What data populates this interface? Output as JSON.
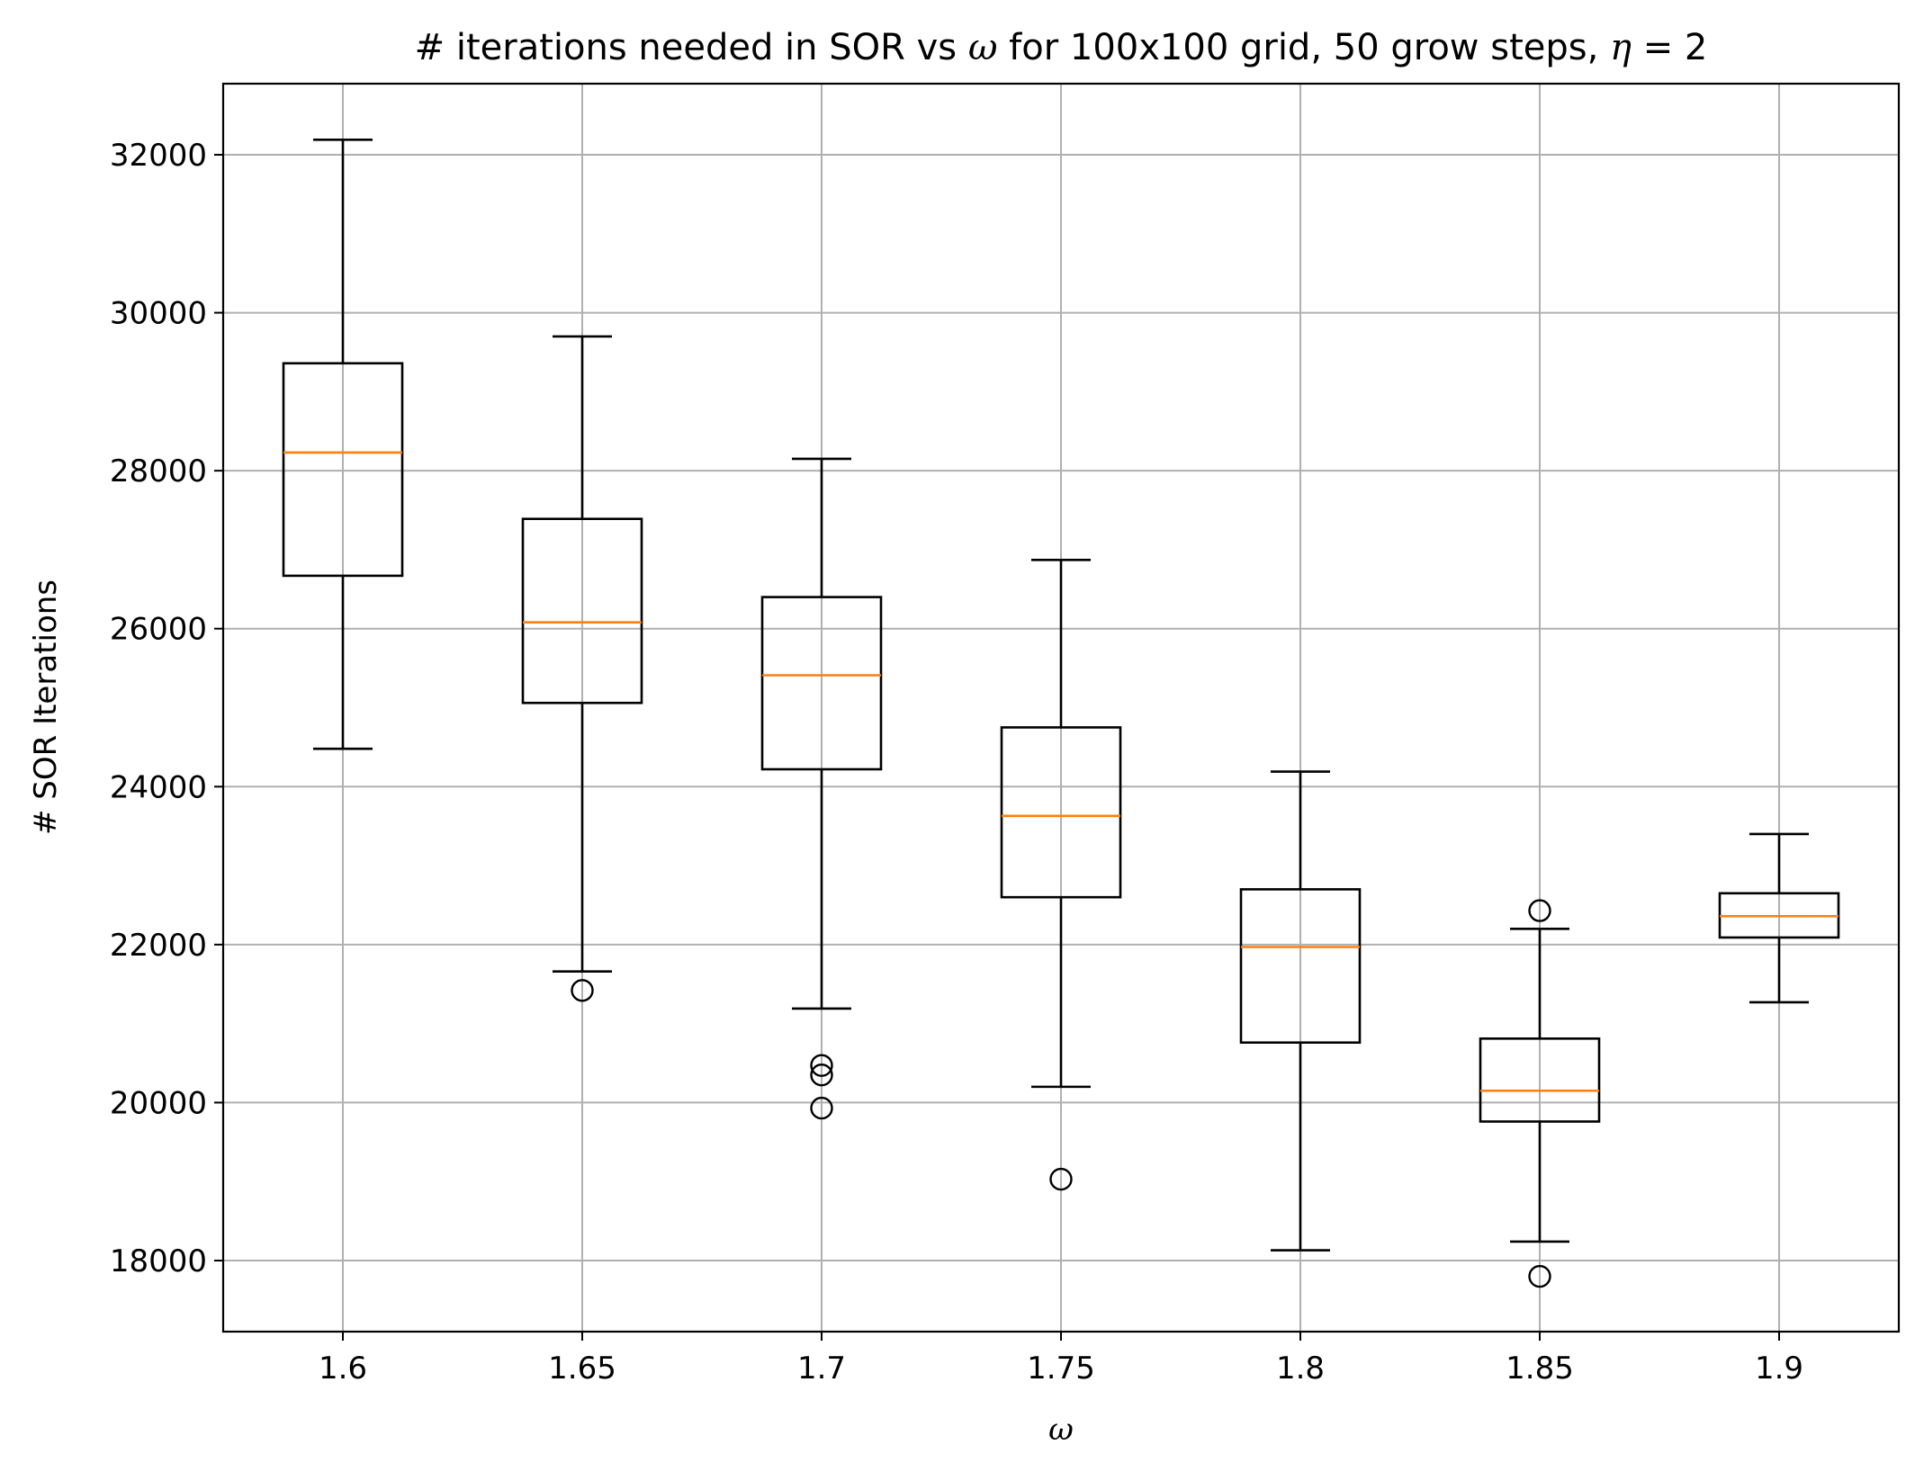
{
  "chart_data": {
    "type": "box",
    "title": "# iterations needed in SOR vs ω for 100x100 grid, 50 grow steps, η = 2",
    "title_parts": {
      "prefix": "# iterations needed in SOR vs ",
      "omega": "ω",
      "middle": " for 100x100 grid, 50 grow steps, ",
      "eta": "η",
      "suffix": " = 2"
    },
    "xlabel": "ω",
    "ylabel": "# SOR Iterations",
    "categories": [
      "1.6",
      "1.65",
      "1.7",
      "1.75",
      "1.8",
      "1.85",
      "1.9"
    ],
    "ylim": [
      17100,
      32900
    ],
    "yticks": [
      18000,
      20000,
      22000,
      24000,
      26000,
      28000,
      30000,
      32000
    ],
    "grid": true,
    "colors": {
      "box": "#000000",
      "median": "#ff7f0e",
      "grid": "#b0b0b0"
    },
    "boxes": [
      {
        "whislo": 24480,
        "q1": 26670,
        "med": 28230,
        "q3": 29360,
        "whishi": 32190,
        "fliers": []
      },
      {
        "whislo": 21660,
        "q1": 25060,
        "med": 26080,
        "q3": 27390,
        "whishi": 29700,
        "fliers": [
          21420
        ]
      },
      {
        "whislo": 21190,
        "q1": 24220,
        "med": 25410,
        "q3": 26400,
        "whishi": 28150,
        "fliers": [
          20470,
          20350,
          19930
        ]
      },
      {
        "whislo": 20200,
        "q1": 22600,
        "med": 23630,
        "q3": 24750,
        "whishi": 26870,
        "fliers": [
          19030
        ]
      },
      {
        "whislo": 18130,
        "q1": 20760,
        "med": 21970,
        "q3": 22700,
        "whishi": 24190,
        "fliers": []
      },
      {
        "whislo": 18240,
        "q1": 19760,
        "med": 20150,
        "q3": 20810,
        "whishi": 22200,
        "fliers": [
          22430,
          17800
        ]
      },
      {
        "whislo": 21270,
        "q1": 22090,
        "med": 22360,
        "q3": 22650,
        "whishi": 23400,
        "fliers": []
      }
    ]
  }
}
